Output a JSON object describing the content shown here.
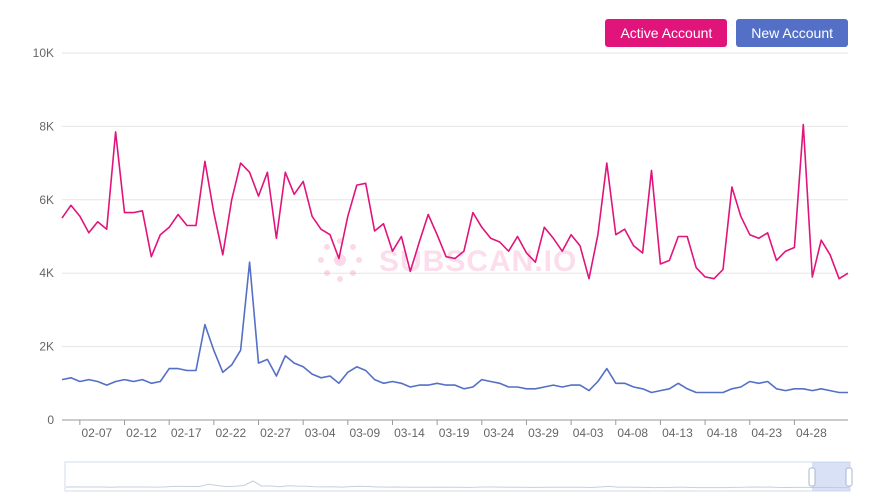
{
  "legend": {
    "active_label": "Active Account",
    "new_label": "New Account"
  },
  "watermark": "SUBSCAN.IO",
  "colors": {
    "active": "#e1147b",
    "new": "#5470c6",
    "grid": "#e6e6e6",
    "axis": "#666666"
  },
  "chart_data": {
    "type": "line",
    "title": "",
    "xlabel": "",
    "ylabel": "",
    "ylim": [
      0,
      10000
    ],
    "y_ticks": [
      0,
      2000,
      4000,
      6000,
      8000,
      10000
    ],
    "y_tick_labels": [
      "0",
      "2K",
      "4K",
      "6K",
      "8K",
      "10K"
    ],
    "x_tick_labels": [
      "02-07",
      "02-12",
      "02-17",
      "02-22",
      "02-27",
      "03-04",
      "03-09",
      "03-14",
      "03-19",
      "03-24",
      "03-29",
      "04-03",
      "04-08",
      "04-13",
      "04-18",
      "04-23",
      "04-28"
    ],
    "x_tick_start_index": 2,
    "x_tick_step": 5,
    "start_date": "02-05",
    "grid": true,
    "legend_position": "top-right",
    "series": [
      {
        "name": "Active Account",
        "color": "#e1147b",
        "values": [
          5500,
          5850,
          5550,
          5100,
          5400,
          5200,
          7850,
          5650,
          5650,
          5700,
          4450,
          5050,
          5250,
          5600,
          5300,
          5300,
          7050,
          5650,
          4500,
          6000,
          7000,
          6750,
          6100,
          6750,
          4950,
          6750,
          6150,
          6500,
          5550,
          5200,
          5050,
          4400,
          5550,
          6400,
          6450,
          5150,
          5350,
          4600,
          5000,
          4050,
          4850,
          5600,
          5050,
          4450,
          4400,
          4600,
          5650,
          5250,
          4950,
          4850,
          4600,
          5000,
          4550,
          4300,
          5250,
          4950,
          4600,
          5050,
          4750,
          3850,
          5050,
          7000,
          5050,
          5200,
          4750,
          4550,
          6800,
          4250,
          4350,
          5000,
          5000,
          4150,
          3900,
          3850,
          4100,
          6350,
          5550,
          5050,
          4950,
          5100,
          4350,
          4600,
          4700,
          8050,
          3900,
          4900,
          4500,
          3850,
          4000
        ]
      },
      {
        "name": "New Account",
        "color": "#5470c6",
        "values": [
          1100,
          1150,
          1050,
          1100,
          1050,
          950,
          1050,
          1100,
          1050,
          1100,
          1000,
          1050,
          1400,
          1400,
          1350,
          1350,
          2600,
          1900,
          1300,
          1500,
          1900,
          4300,
          1550,
          1650,
          1200,
          1750,
          1550,
          1450,
          1250,
          1150,
          1200,
          1000,
          1300,
          1450,
          1350,
          1100,
          1000,
          1050,
          1000,
          900,
          950,
          950,
          1000,
          950,
          950,
          850,
          900,
          1100,
          1050,
          1000,
          900,
          900,
          850,
          850,
          900,
          950,
          900,
          950,
          950,
          800,
          1050,
          1400,
          1000,
          1000,
          900,
          850,
          750,
          800,
          850,
          1000,
          850,
          750,
          750,
          750,
          750,
          850,
          900,
          1050,
          1000,
          1050,
          850,
          800,
          850,
          850,
          800,
          850,
          800,
          750,
          750
        ]
      }
    ]
  }
}
